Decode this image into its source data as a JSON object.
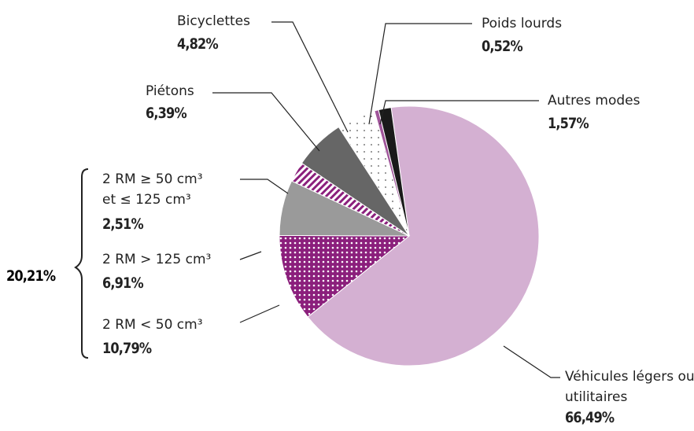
{
  "chart_data": {
    "type": "pie",
    "categories": [
      "Véhicules légers ou utilitaires",
      "2 RM < 50 cm³",
      "2 RM > 125 cm³",
      "2 RM ≥ 50 cm³ et ≤ 125 cm³",
      "Piétons",
      "Bicyclettes",
      "Poids lourds",
      "Autres modes"
    ],
    "values": [
      66.49,
      10.79,
      6.91,
      2.51,
      6.39,
      4.82,
      0.52,
      1.57
    ],
    "value_labels": [
      "66,49%",
      "10,79%",
      "6,91%",
      "2,51%",
      "6,39%",
      "4,82%",
      "0,52%",
      "1,57%"
    ],
    "colors": [
      "#d4b0d2",
      "#8b1f7c",
      "#9a9a9a",
      "#8b1f7c",
      "#666666",
      "#ffffff",
      "#a0559a",
      "#1a1a1a"
    ],
    "patterns": [
      "none",
      "crosshatch",
      "none",
      "stripes",
      "none",
      "dots",
      "none",
      "none"
    ],
    "annotations": [
      "20,21%"
    ]
  }
}
